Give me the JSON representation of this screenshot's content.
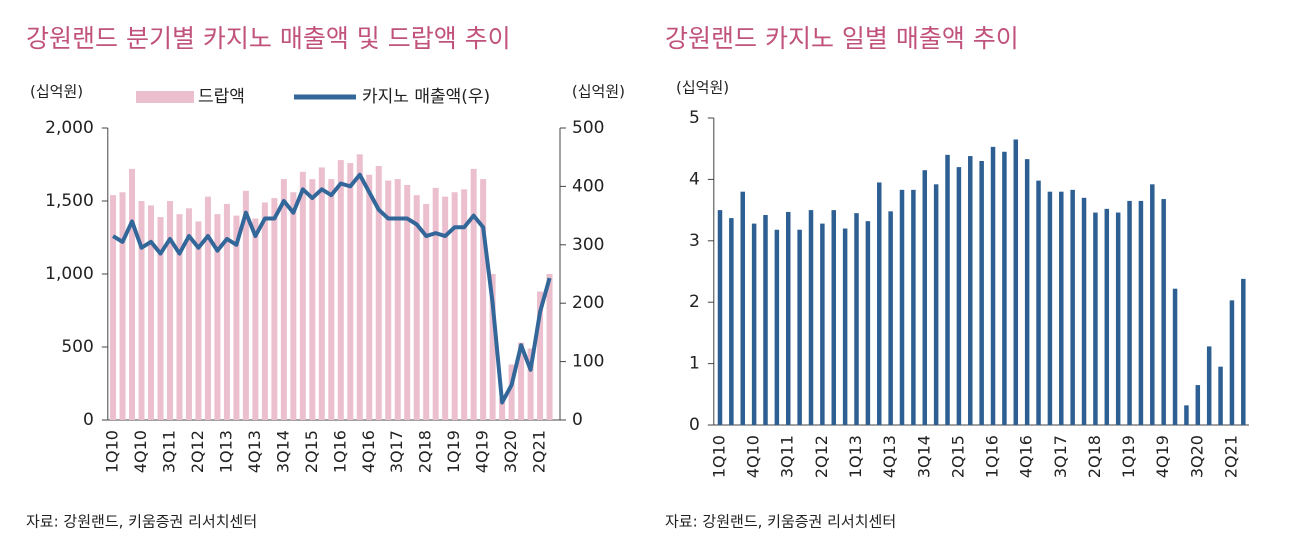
{
  "chart_data": [
    {
      "type": "combo",
      "title": "강원랜드 분기별 카지노 매출액 및 드랍액 추이",
      "ylabel": "(십억원)",
      "y2label": "(십억원)",
      "source": "자료: 강원랜드, 키움증권 리서치센터",
      "categories": [
        "1Q10",
        null,
        null,
        "4Q10",
        null,
        null,
        "3Q11",
        null,
        null,
        "2Q12",
        null,
        null,
        "1Q13",
        null,
        null,
        "4Q13",
        null,
        null,
        "3Q14",
        null,
        null,
        "2Q15",
        null,
        null,
        "1Q16",
        null,
        null,
        "4Q16",
        null,
        null,
        "3Q17",
        null,
        null,
        "2Q18",
        null,
        null,
        "1Q19",
        null,
        null,
        "4Q19",
        null,
        null,
        "3Q20",
        null,
        null,
        "2Q21",
        null
      ],
      "series": [
        {
          "name": "드랍액",
          "color": "#ebbfce",
          "type": "bar",
          "values": [
            1540,
            1560,
            1720,
            1500,
            1470,
            1390,
            1500,
            1410,
            1450,
            1360,
            1530,
            1410,
            1480,
            1400,
            1570,
            1380,
            1490,
            1520,
            1650,
            1560,
            1700,
            1650,
            1730,
            1650,
            1780,
            1760,
            1820,
            1680,
            1740,
            1640,
            1650,
            1610,
            1540,
            1480,
            1590,
            1530,
            1560,
            1580,
            1720,
            1650,
            1000,
            150,
            380,
            530,
            490,
            880,
            1000
          ]
        },
        {
          "name": "카지노 매출액(우)",
          "color": "#33679a",
          "type": "line",
          "axis": "y2",
          "values": [
            315,
            305,
            340,
            295,
            305,
            285,
            310,
            285,
            315,
            295,
            315,
            290,
            310,
            300,
            355,
            315,
            345,
            345,
            375,
            355,
            395,
            380,
            395,
            385,
            405,
            400,
            420,
            390,
            360,
            345,
            345,
            345,
            335,
            315,
            320,
            315,
            330,
            330,
            350,
            330,
            200,
            30,
            60,
            128,
            86,
            185,
            243
          ]
        }
      ],
      "ylim": [
        0,
        2000
      ],
      "yticks": [
        0,
        500,
        {
          "value": 1000,
          "label": "1,000"
        },
        {
          "value": 1500,
          "label": "1,500"
        },
        {
          "value": 2000,
          "label": "2,000"
        }
      ],
      "y2lim": [
        0,
        500
      ],
      "y2ticks": [
        0,
        100,
        200,
        300,
        400,
        500
      ],
      "legend": "top"
    },
    {
      "type": "bar",
      "title": "강원랜드 카지노 일별 매출액 추이",
      "ylabel": "(십억원)",
      "source": "자료: 강원랜드, 키움증권 리서치센터",
      "categories": [
        "1Q10",
        null,
        null,
        "4Q10",
        null,
        null,
        "3Q11",
        null,
        null,
        "2Q12",
        null,
        null,
        "1Q13",
        null,
        null,
        "4Q13",
        null,
        null,
        "3Q14",
        null,
        null,
        "2Q15",
        null,
        null,
        "1Q16",
        null,
        null,
        "4Q16",
        null,
        null,
        "3Q17",
        null,
        null,
        "2Q18",
        null,
        null,
        "1Q19",
        null,
        null,
        "4Q19",
        null,
        null,
        "3Q20",
        null,
        null,
        "2Q21",
        null
      ],
      "series": [
        {
          "color": "#2e5f93",
          "values": [
            3.5,
            3.37,
            3.8,
            3.28,
            3.42,
            3.18,
            3.47,
            3.18,
            3.5,
            3.28,
            3.5,
            3.2,
            3.45,
            3.32,
            3.95,
            3.48,
            3.83,
            3.83,
            4.15,
            3.92,
            4.4,
            4.2,
            4.38,
            4.3,
            4.53,
            4.45,
            4.65,
            4.33,
            3.98,
            3.8,
            3.8,
            3.83,
            3.7,
            3.46,
            3.52,
            3.46,
            3.65,
            3.65,
            3.92,
            3.68,
            2.22,
            0.32,
            0.65,
            1.28,
            0.95,
            2.03,
            2.38
          ]
        }
      ],
      "ylim": [
        0,
        5
      ],
      "yticks": [
        0,
        1,
        2,
        3,
        4,
        5
      ]
    }
  ]
}
